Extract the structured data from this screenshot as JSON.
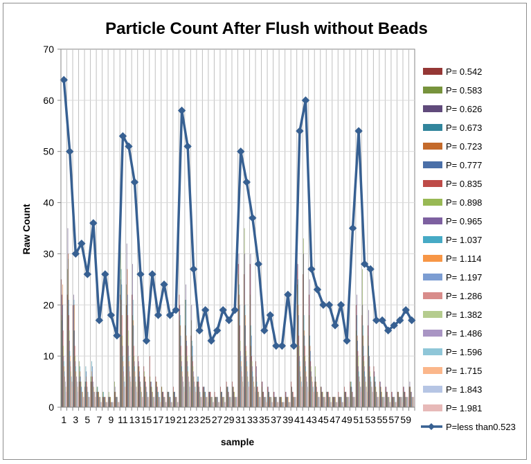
{
  "chart_data": {
    "type": "bar",
    "title": "Particle Count After Flush without Beads",
    "xlabel": "sample",
    "ylabel": "Raw Count",
    "ylim": [
      0,
      70
    ],
    "yticks": [
      0,
      10,
      20,
      30,
      40,
      50,
      60,
      70
    ],
    "categories": [
      "1",
      "2",
      "3",
      "4",
      "5",
      "6",
      "7",
      "8",
      "9",
      "10",
      "11",
      "12",
      "13",
      "14",
      "15",
      "16",
      "17",
      "18",
      "19",
      "20",
      "21",
      "22",
      "23",
      "24",
      "25",
      "26",
      "27",
      "28",
      "29",
      "30",
      "31",
      "32",
      "33",
      "34",
      "35",
      "36",
      "37",
      "38",
      "39",
      "40",
      "41",
      "42",
      "43",
      "44",
      "45",
      "46",
      "47",
      "48",
      "49",
      "50",
      "51",
      "52",
      "53",
      "54",
      "55",
      "56",
      "57",
      "58",
      "59",
      "60"
    ],
    "x_tick_labels": [
      "1",
      "3",
      "5",
      "7",
      "9",
      "11",
      "13",
      "15",
      "17",
      "19",
      "21",
      "23",
      "25",
      "27",
      "29",
      "31",
      "33",
      "35",
      "37",
      "39",
      "41",
      "43",
      "45",
      "47",
      "49",
      "51",
      "53",
      "55",
      "57",
      "59"
    ],
    "grid": "vertical",
    "legend_position": "right",
    "series": [
      {
        "name": "P= 0.542",
        "color": "#953735",
        "type": "bar",
        "values": [
          25,
          22,
          20,
          5,
          4,
          5,
          3,
          2,
          2,
          3,
          22,
          20,
          22,
          10,
          8,
          10,
          6,
          4,
          3,
          4,
          22,
          16,
          14,
          5,
          4,
          3,
          3,
          4,
          5,
          5,
          28,
          26,
          28,
          9,
          5,
          4,
          3,
          2,
          3,
          5,
          30,
          26,
          22,
          5,
          4,
          3,
          2,
          3,
          4,
          5,
          20,
          18,
          16,
          8,
          5,
          4,
          3,
          3,
          4,
          4
        ]
      },
      {
        "name": "P= 0.583",
        "color": "#77933c",
        "type": "bar",
        "values": [
          18,
          27,
          15,
          9,
          5,
          6,
          4,
          3,
          3,
          5,
          35,
          24,
          18,
          8,
          7,
          6,
          5,
          4,
          3,
          3,
          17,
          21,
          17,
          5,
          3,
          2,
          2,
          3,
          4,
          4,
          26,
          35,
          22,
          6,
          4,
          3,
          2,
          2,
          2,
          4,
          24,
          33,
          18,
          8,
          4,
          3,
          2,
          2,
          3,
          5,
          15,
          27,
          14,
          6,
          4,
          3,
          2,
          3,
          3,
          4
        ]
      },
      {
        "name": "P= 0.626",
        "color": "#604a7b",
        "type": "bar",
        "values": [
          22,
          35,
          22,
          6,
          5,
          5,
          3,
          2,
          2,
          4,
          25,
          32,
          28,
          9,
          6,
          5,
          5,
          3,
          3,
          3,
          20,
          24,
          20,
          5,
          4,
          3,
          2,
          3,
          4,
          4,
          30,
          30,
          30,
          8,
          5,
          4,
          3,
          2,
          3,
          4,
          28,
          30,
          25,
          6,
          4,
          3,
          2,
          2,
          3,
          4,
          22,
          20,
          19,
          7,
          5,
          4,
          3,
          3,
          4,
          5
        ]
      },
      {
        "name": "P= 0.673",
        "color": "#31859c",
        "type": "bar",
        "values": [
          17,
          29,
          21,
          8,
          8,
          9,
          4,
          3,
          2,
          3,
          27,
          20,
          21,
          6,
          5,
          4,
          4,
          3,
          3,
          3,
          18,
          21,
          13,
          6,
          4,
          3,
          2,
          3,
          4,
          4,
          24,
          20,
          16,
          5,
          3,
          3,
          2,
          2,
          2,
          3,
          25,
          18,
          14,
          5,
          3,
          3,
          2,
          2,
          3,
          5,
          18,
          16,
          12,
          6,
          4,
          3,
          2,
          3,
          3,
          4
        ]
      },
      {
        "name": "P= 0.723",
        "color": "#c46a2b",
        "type": "bar",
        "values": [
          24,
          30,
          20,
          7,
          6,
          7,
          3,
          2,
          2,
          3,
          21,
          27,
          17,
          8,
          6,
          5,
          5,
          3,
          3,
          3,
          16,
          14,
          10,
          5,
          4,
          3,
          2,
          3,
          4,
          4,
          22,
          18,
          12,
          4,
          3,
          3,
          2,
          2,
          2,
          3,
          20,
          15,
          12,
          5,
          3,
          3,
          2,
          2,
          3,
          4,
          14,
          14,
          10,
          5,
          4,
          3,
          2,
          3,
          3,
          4
        ]
      },
      {
        "name": "P= 0.777",
        "color": "#4a6fa8",
        "type": "bar",
        "values": [
          20,
          21,
          15,
          6,
          7,
          8,
          3,
          2,
          2,
          2,
          24,
          22,
          16,
          7,
          5,
          5,
          4,
          3,
          3,
          3,
          14,
          13,
          12,
          6,
          4,
          3,
          2,
          3,
          4,
          3,
          20,
          16,
          14,
          4,
          3,
          3,
          2,
          2,
          2,
          3,
          18,
          14,
          11,
          4,
          3,
          3,
          2,
          2,
          3,
          4,
          13,
          12,
          10,
          5,
          3,
          3,
          2,
          2,
          3,
          3
        ]
      },
      {
        "name": "P= 0.835",
        "color": "#be4b48",
        "type": "bar",
        "values": [
          15,
          18,
          12,
          5,
          5,
          6,
          3,
          2,
          2,
          2,
          18,
          18,
          12,
          6,
          5,
          4,
          4,
          3,
          2,
          2,
          12,
          12,
          9,
          5,
          3,
          3,
          2,
          2,
          3,
          3,
          16,
          12,
          10,
          4,
          3,
          2,
          2,
          2,
          2,
          3,
          14,
          12,
          9,
          4,
          3,
          3,
          2,
          2,
          3,
          3,
          11,
          10,
          8,
          4,
          3,
          3,
          2,
          2,
          3,
          3
        ]
      },
      {
        "name": "P= 0.898",
        "color": "#98b954",
        "type": "bar",
        "values": [
          12,
          15,
          10,
          5,
          4,
          5,
          3,
          2,
          2,
          2,
          14,
          15,
          10,
          5,
          4,
          4,
          3,
          2,
          2,
          2,
          10,
          10,
          8,
          4,
          3,
          2,
          2,
          2,
          3,
          3,
          13,
          11,
          9,
          3,
          2,
          2,
          2,
          2,
          2,
          2,
          12,
          10,
          8,
          3,
          3,
          2,
          2,
          2,
          2,
          3,
          10,
          9,
          7,
          4,
          3,
          2,
          2,
          2,
          2,
          3
        ]
      },
      {
        "name": "P= 0.965",
        "color": "#7d60a0",
        "type": "bar",
        "values": [
          10,
          13,
          9,
          4,
          4,
          5,
          2,
          2,
          1,
          2,
          12,
          12,
          9,
          5,
          4,
          3,
          3,
          2,
          2,
          2,
          9,
          9,
          7,
          4,
          3,
          2,
          2,
          2,
          3,
          2,
          11,
          10,
          8,
          3,
          2,
          2,
          2,
          1,
          2,
          2,
          10,
          9,
          7,
          3,
          2,
          2,
          2,
          2,
          2,
          3,
          8,
          8,
          6,
          3,
          2,
          2,
          2,
          2,
          2,
          3
        ]
      },
      {
        "name": "P= 1.037",
        "color": "#46aac5",
        "type": "bar",
        "values": [
          9,
          11,
          8,
          4,
          3,
          4,
          2,
          2,
          1,
          2,
          10,
          10,
          8,
          4,
          3,
          3,
          3,
          2,
          2,
          2,
          8,
          8,
          6,
          3,
          3,
          2,
          2,
          2,
          2,
          2,
          10,
          9,
          7,
          3,
          2,
          2,
          2,
          1,
          2,
          2,
          9,
          8,
          6,
          3,
          2,
          2,
          2,
          2,
          2,
          2,
          7,
          7,
          6,
          3,
          2,
          2,
          2,
          2,
          2,
          2
        ]
      },
      {
        "name": "P= 1.114",
        "color": "#f79646",
        "type": "bar",
        "values": [
          8,
          10,
          7,
          3,
          3,
          4,
          2,
          2,
          1,
          2,
          9,
          9,
          7,
          4,
          3,
          3,
          2,
          2,
          2,
          2,
          7,
          7,
          6,
          3,
          2,
          2,
          2,
          2,
          2,
          2,
          9,
          8,
          6,
          3,
          2,
          2,
          2,
          1,
          2,
          2,
          8,
          7,
          6,
          3,
          2,
          2,
          2,
          2,
          2,
          2,
          6,
          6,
          5,
          3,
          2,
          2,
          2,
          2,
          2,
          2
        ]
      },
      {
        "name": "P= 1.197",
        "color": "#7c9dd2",
        "type": "bar",
        "values": [
          7,
          9,
          6,
          3,
          3,
          3,
          2,
          1,
          1,
          2,
          8,
          8,
          6,
          3,
          3,
          2,
          2,
          2,
          2,
          2,
          6,
          6,
          5,
          3,
          2,
          2,
          2,
          2,
          2,
          2,
          8,
          7,
          6,
          2,
          2,
          2,
          2,
          1,
          1,
          2,
          7,
          6,
          5,
          2,
          2,
          2,
          1,
          2,
          2,
          2,
          6,
          6,
          5,
          2,
          2,
          2,
          2,
          2,
          2,
          2
        ]
      },
      {
        "name": "P= 1.286",
        "color": "#d88c8a",
        "type": "bar",
        "values": [
          6,
          8,
          6,
          3,
          2,
          3,
          2,
          1,
          1,
          1,
          7,
          7,
          5,
          3,
          2,
          2,
          2,
          2,
          1,
          2,
          6,
          6,
          5,
          2,
          2,
          2,
          1,
          2,
          2,
          2,
          7,
          6,
          5,
          2,
          2,
          2,
          1,
          1,
          1,
          2,
          6,
          6,
          5,
          2,
          2,
          2,
          1,
          1,
          2,
          2,
          5,
          5,
          4,
          2,
          2,
          2,
          1,
          2,
          2,
          2
        ]
      },
      {
        "name": "P= 1.382",
        "color": "#b5cc8e",
        "type": "bar",
        "values": [
          5,
          7,
          5,
          3,
          2,
          3,
          2,
          1,
          1,
          1,
          6,
          6,
          5,
          3,
          2,
          2,
          2,
          1,
          1,
          1,
          5,
          5,
          4,
          2,
          2,
          2,
          1,
          2,
          2,
          2,
          6,
          6,
          5,
          2,
          2,
          2,
          1,
          1,
          1,
          2,
          6,
          5,
          4,
          2,
          2,
          2,
          1,
          1,
          2,
          2,
          5,
          5,
          4,
          2,
          2,
          2,
          1,
          2,
          2,
          2
        ]
      },
      {
        "name": "P= 1.486",
        "color": "#a995c4",
        "type": "bar",
        "values": [
          5,
          6,
          5,
          2,
          2,
          3,
          1,
          1,
          1,
          1,
          5,
          6,
          4,
          2,
          2,
          2,
          2,
          1,
          1,
          1,
          5,
          5,
          4,
          2,
          2,
          1,
          1,
          1,
          2,
          2,
          6,
          5,
          4,
          2,
          2,
          1,
          1,
          1,
          1,
          2,
          5,
          5,
          4,
          2,
          2,
          1,
          1,
          1,
          2,
          2,
          4,
          4,
          4,
          2,
          2,
          1,
          1,
          2,
          2,
          2
        ]
      },
      {
        "name": "P= 1.596",
        "color": "#8fc6d8",
        "type": "bar",
        "values": [
          4,
          6,
          4,
          2,
          2,
          2,
          1,
          1,
          1,
          1,
          5,
          5,
          4,
          2,
          2,
          2,
          2,
          1,
          1,
          1,
          4,
          4,
          4,
          2,
          2,
          1,
          1,
          1,
          2,
          2,
          5,
          5,
          4,
          2,
          2,
          1,
          1,
          1,
          1,
          2,
          5,
          4,
          4,
          2,
          2,
          1,
          1,
          1,
          2,
          2,
          4,
          4,
          3,
          2,
          2,
          1,
          1,
          2,
          2,
          2
        ]
      },
      {
        "name": "P= 1.715",
        "color": "#fbb78b",
        "type": "bar",
        "values": [
          4,
          5,
          4,
          2,
          2,
          2,
          1,
          1,
          1,
          1,
          4,
          5,
          4,
          2,
          2,
          2,
          1,
          1,
          1,
          1,
          4,
          4,
          3,
          2,
          2,
          1,
          1,
          1,
          2,
          2,
          5,
          4,
          4,
          2,
          1,
          1,
          1,
          1,
          1,
          2,
          4,
          4,
          3,
          2,
          2,
          1,
          1,
          1,
          2,
          2,
          4,
          4,
          3,
          2,
          2,
          1,
          1,
          2,
          2,
          2
        ]
      },
      {
        "name": "P= 1.843",
        "color": "#b6c5e4",
        "type": "bar",
        "values": [
          3,
          5,
          3,
          2,
          2,
          2,
          1,
          1,
          1,
          1,
          4,
          4,
          3,
          2,
          2,
          2,
          1,
          1,
          1,
          1,
          4,
          4,
          3,
          2,
          1,
          1,
          1,
          1,
          2,
          2,
          4,
          4,
          3,
          2,
          1,
          1,
          1,
          1,
          1,
          2,
          4,
          4,
          3,
          2,
          1,
          1,
          1,
          1,
          2,
          2,
          4,
          3,
          3,
          2,
          2,
          1,
          1,
          2,
          2,
          2
        ]
      },
      {
        "name": "P= 1.981",
        "color": "#e7b9b8",
        "type": "bar",
        "values": [
          3,
          4,
          3,
          2,
          2,
          2,
          1,
          1,
          1,
          1,
          4,
          4,
          3,
          2,
          2,
          1,
          1,
          1,
          1,
          1,
          3,
          3,
          3,
          2,
          1,
          1,
          1,
          1,
          1,
          2,
          4,
          4,
          3,
          2,
          1,
          1,
          1,
          1,
          1,
          2,
          4,
          3,
          3,
          2,
          1,
          1,
          1,
          1,
          1,
          2,
          3,
          3,
          3,
          2,
          1,
          1,
          1,
          1,
          2,
          2
        ]
      },
      {
        "name": "P=less than0.523",
        "color": "#376092",
        "type": "line",
        "values": [
          64,
          50,
          30,
          32,
          26,
          36,
          17,
          26,
          18,
          14,
          53,
          51,
          44,
          26,
          13,
          26,
          18,
          24,
          18,
          19,
          58,
          51,
          27,
          15,
          19,
          13,
          15,
          19,
          17,
          19,
          50,
          44,
          37,
          28,
          15,
          18,
          12,
          12,
          22,
          12,
          54,
          60,
          27,
          23,
          20,
          20,
          16,
          20,
          13,
          35,
          54,
          28,
          27,
          17,
          17,
          15,
          16,
          17,
          19,
          17
        ]
      }
    ]
  }
}
